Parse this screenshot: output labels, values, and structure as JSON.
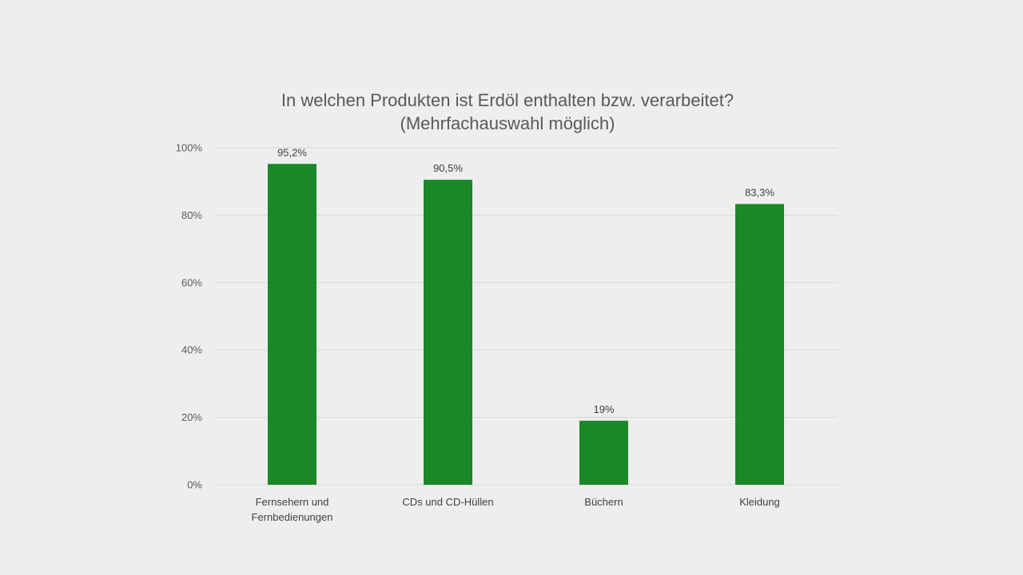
{
  "chart_data": {
    "type": "bar",
    "title_lines": [
      "In welchen Produkten ist Erdöl enthalten bzw. verarbeitet?",
      "(Mehrfachauswahl möglich)"
    ],
    "categories": [
      [
        "Fernsehern und",
        "Fernbedienungen"
      ],
      [
        "CDs und CD-Hüllen"
      ],
      [
        "Büchern"
      ],
      [
        "Kleidung"
      ]
    ],
    "values": [
      95.2,
      90.5,
      19,
      83.3
    ],
    "data_labels": [
      "95,2%",
      "90,5%",
      "19%",
      "83,3%"
    ],
    "ylim": [
      0,
      100
    ],
    "yticks": [
      0,
      20,
      40,
      60,
      80,
      100
    ],
    "ytick_labels": [
      "0%",
      "20%",
      "40%",
      "60%",
      "80%",
      "100%"
    ],
    "grid": true,
    "legend": "none",
    "colors": {
      "bar": "#1a8826",
      "grid": "#d9d9d9",
      "background": "#eeeeee"
    }
  }
}
